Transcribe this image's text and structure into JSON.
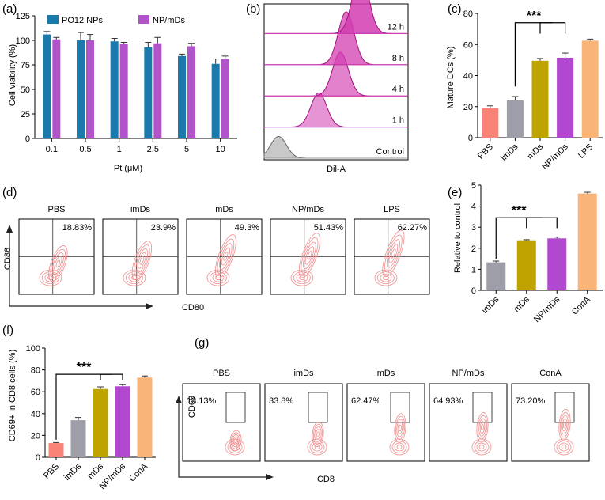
{
  "colors": {
    "teal": "#1a7aab",
    "violet": "#b154c9",
    "pbs": "#f98377",
    "imds": "#9e9ea8",
    "mds": "#bfa400",
    "npmds": "#b248d0",
    "last": "#f8b479",
    "flow_fill": "#d23db0",
    "flow_line": "#a0127f",
    "contour": "#ef8d8d"
  },
  "chart_data": [
    {
      "panel": "(a)",
      "type": "bar",
      "ylabel": "Cell viability (%)",
      "xlabel": "Pt (μM)",
      "ylim": [
        0,
        125
      ],
      "yticks": [
        "0",
        "25",
        "50",
        "75",
        "100",
        "125"
      ],
      "categories": [
        "0.1",
        "0.5",
        "1",
        "2.5",
        "5",
        "10"
      ],
      "series": [
        {
          "name": "PO12 NPs",
          "values": [
            106,
            100,
            99,
            93,
            84,
            76
          ],
          "errors": [
            3,
            8,
            3,
            5,
            2,
            5
          ]
        },
        {
          "name": "NP/mDs",
          "values": [
            101,
            100,
            96,
            97,
            94,
            81
          ],
          "errors": [
            2,
            6,
            2,
            6,
            3,
            3
          ]
        }
      ]
    },
    {
      "panel": "(b)",
      "type": "histogram-stack",
      "xlabel": "Dil-A",
      "traces": [
        {
          "label": "Control",
          "peak": 0.1
        },
        {
          "label": "1 h",
          "peak": 0.38
        },
        {
          "label": "4 h",
          "peak": 0.53
        },
        {
          "label": "8 h",
          "peak": 0.57
        },
        {
          "label": "12 h",
          "peak": 0.67
        }
      ]
    },
    {
      "panel": "(c)",
      "type": "bar",
      "ylabel": "Mature DCs (%)",
      "ylim": [
        0,
        80
      ],
      "yticks": [
        "0",
        "20",
        "40",
        "60",
        "80"
      ],
      "categories": [
        "PBS",
        "imDs",
        "mDs",
        "NP/mDs",
        "LPS"
      ],
      "values": [
        19,
        24,
        49.5,
        51.5,
        62.5
      ],
      "errors": [
        1.5,
        2.5,
        1.5,
        3,
        1
      ],
      "annotation": "***"
    },
    {
      "panel": "(d)",
      "type": "flow-quadrant",
      "xlabel": "CD80",
      "ylabel": "CD86",
      "plots": [
        {
          "title": "PBS",
          "value": "18.83%",
          "upper": 0.12
        },
        {
          "title": "imDs",
          "value": "23.9%",
          "upper": 0.28
        },
        {
          "title": "mDs",
          "value": "49.3%",
          "upper": 0.5
        },
        {
          "title": "NP/mDs",
          "value": "51.43%",
          "upper": 0.55
        },
        {
          "title": "LPS",
          "value": "62.27%",
          "upper": 0.65
        }
      ]
    },
    {
      "panel": "(e)",
      "type": "bar",
      "ylabel": "Relative to control",
      "ylim": [
        0,
        5
      ],
      "yticks": [
        "0",
        "1",
        "2",
        "3",
        "4",
        "5"
      ],
      "categories": [
        "imDs",
        "mDs",
        "NP/mDs",
        "ConA"
      ],
      "values": [
        1.33,
        2.38,
        2.47,
        4.6
      ],
      "errors": [
        0.06,
        0.03,
        0.06,
        0.06
      ],
      "annotation": "***"
    },
    {
      "panel": "(f)",
      "type": "bar",
      "ylabel": "CD69+ in CD8 cells (%)",
      "ylim": [
        0,
        100
      ],
      "yticks": [
        "0",
        "20",
        "40",
        "60",
        "80",
        "100"
      ],
      "categories": [
        "PBS",
        "imDs",
        "mDs",
        "NP/mDs",
        "ConA"
      ],
      "values": [
        13,
        34,
        62.5,
        65,
        73
      ],
      "errors": [
        0.5,
        2.5,
        2,
        1.5,
        1.5
      ],
      "annotation": "***"
    },
    {
      "panel": "(g)",
      "type": "flow-gate",
      "xlabel": "CD8",
      "ylabel": "CD69",
      "plots": [
        {
          "title": "PBS",
          "value": "13.13%",
          "upper": 0.2
        },
        {
          "title": "imDs",
          "value": "33.8%",
          "upper": 0.4
        },
        {
          "title": "mDs",
          "value": "62.47%",
          "upper": 0.6
        },
        {
          "title": "NP/mDs",
          "value": "64.93%",
          "upper": 0.62
        },
        {
          "title": "ConA",
          "value": "73.20%",
          "upper": 0.7
        }
      ]
    }
  ]
}
